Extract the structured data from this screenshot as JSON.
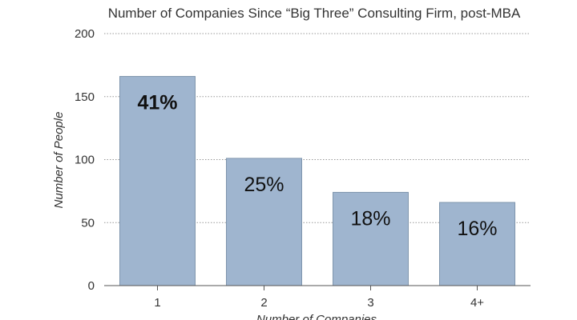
{
  "chart_data": {
    "type": "bar",
    "title": "Number of Companies Since “Big Three” Consulting Firm, post-MBA",
    "xlabel": "Number of Companies",
    "ylabel": "Number of People",
    "categories": [
      "1",
      "2",
      "3",
      "4+"
    ],
    "values": [
      166,
      101,
      74,
      66
    ],
    "data_labels": [
      "41%",
      "25%",
      "18%",
      "16%"
    ],
    "highlight_index": 0,
    "yticks": [
      0,
      50,
      100,
      150,
      200
    ],
    "ylim": [
      0,
      200
    ],
    "grid": true,
    "bar_color": "#9fb5cf",
    "bar_edge_color": "#7f95ad"
  }
}
